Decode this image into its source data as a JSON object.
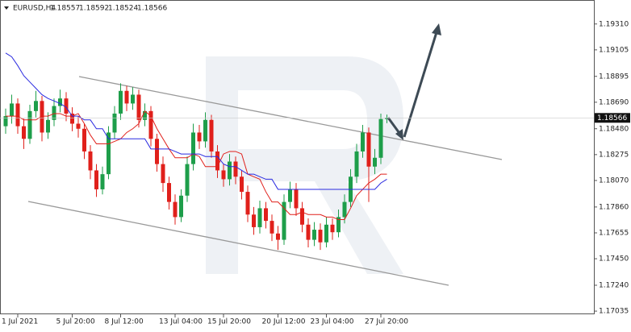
{
  "chart_data": {
    "type": "candlestick",
    "title": "EURUSD,H4",
    "categories": [
      null,
      null,
      "1 Jul 2021",
      null,
      null,
      null,
      null,
      null,
      null,
      null,
      null,
      "5 Jul 20:00",
      null,
      null,
      null,
      null,
      null,
      null,
      null,
      "8 Jul 12:00",
      null,
      null,
      null,
      null,
      null,
      null,
      null,
      null,
      "13 Jul 04:00",
      null,
      null,
      null,
      null,
      null,
      null,
      null,
      "15 Jul 20:00",
      null,
      null,
      null,
      null,
      null,
      null,
      null,
      null,
      "20 Jul 12:00",
      null,
      null,
      null,
      null,
      null,
      null,
      null,
      "23 Jul 04:00",
      null,
      null,
      null,
      null,
      null,
      null,
      null,
      null,
      "27 Jul 20:00",
      null
    ],
    "open": [
      1.185,
      1.1858,
      1.1868,
      1.185,
      1.184,
      1.1862,
      1.187,
      1.1845,
      1.1855,
      1.1866,
      1.1872,
      1.186,
      1.1852,
      1.1848,
      1.183,
      1.1815,
      1.18,
      1.1812,
      1.1845,
      1.186,
      1.1878,
      1.1868,
      1.1875,
      1.1855,
      1.1862,
      1.184,
      1.182,
      1.1805,
      1.179,
      1.1778,
      1.1795,
      1.182,
      1.1845,
      1.1838,
      1.1855,
      1.183,
      1.1815,
      1.1808,
      1.1822,
      1.181,
      1.1798,
      1.178,
      1.177,
      1.1785,
      1.1775,
      1.1765,
      1.176,
      1.179,
      1.18,
      1.1785,
      1.1772,
      1.176,
      1.1768,
      1.1758,
      1.1772,
      1.1766,
      1.1778,
      1.179,
      1.181,
      1.183,
      1.1845,
      1.1818,
      1.1825,
      1.18557
    ],
    "high": [
      1.1864,
      1.1875,
      1.1872,
      1.1856,
      1.1867,
      1.1878,
      1.1874,
      1.1861,
      1.1872,
      1.1879,
      1.1877,
      1.1865,
      1.1858,
      1.1852,
      1.1835,
      1.182,
      1.1818,
      1.185,
      1.1866,
      1.1884,
      1.1882,
      1.1881,
      1.1879,
      1.1868,
      1.1866,
      1.1844,
      1.1826,
      1.181,
      1.1796,
      1.18,
      1.1826,
      1.1852,
      1.1851,
      1.1861,
      1.1859,
      1.1835,
      1.182,
      1.1828,
      1.1826,
      1.1815,
      1.1803,
      1.1786,
      1.1791,
      1.179,
      1.178,
      1.1771,
      1.1796,
      1.1806,
      1.1805,
      1.179,
      1.1777,
      1.1774,
      1.1773,
      1.1778,
      1.1777,
      1.1784,
      1.1796,
      1.1816,
      1.1836,
      1.1851,
      1.1849,
      1.1832,
      1.186,
      1.18592
    ],
    "low": [
      1.1844,
      1.1852,
      1.1844,
      1.1832,
      1.1836,
      1.1857,
      1.1838,
      1.184,
      1.185,
      1.1861,
      1.1854,
      1.1846,
      1.1841,
      1.1824,
      1.1808,
      1.1794,
      1.1796,
      1.1808,
      1.184,
      1.1855,
      1.1862,
      1.1863,
      1.1849,
      1.185,
      1.1834,
      1.1814,
      1.1798,
      1.1784,
      1.1772,
      1.1774,
      1.179,
      1.1815,
      1.1832,
      1.1833,
      1.1825,
      1.1809,
      1.1802,
      1.1803,
      1.1804,
      1.1792,
      1.1774,
      1.1764,
      1.1765,
      1.1769,
      1.1759,
      1.1752,
      1.1756,
      1.1785,
      1.1779,
      1.1766,
      1.1754,
      1.1755,
      1.1752,
      1.1754,
      1.176,
      1.1762,
      1.1773,
      1.1786,
      1.1805,
      1.1825,
      1.179,
      1.1812,
      1.182,
      1.18524
    ],
    "close": [
      1.1858,
      1.1868,
      1.185,
      1.184,
      1.1862,
      1.187,
      1.1845,
      1.1855,
      1.1866,
      1.1872,
      1.186,
      1.1852,
      1.1848,
      1.183,
      1.1815,
      1.18,
      1.1812,
      1.1845,
      1.186,
      1.1878,
      1.1868,
      1.1875,
      1.1855,
      1.1862,
      1.184,
      1.182,
      1.1805,
      1.179,
      1.1778,
      1.1795,
      1.182,
      1.1845,
      1.1838,
      1.1855,
      1.183,
      1.1815,
      1.1808,
      1.1822,
      1.181,
      1.1798,
      1.178,
      1.177,
      1.1785,
      1.1775,
      1.1765,
      1.176,
      1.179,
      1.18,
      1.1785,
      1.1772,
      1.176,
      1.1768,
      1.1758,
      1.1772,
      1.1766,
      1.1778,
      1.179,
      1.181,
      1.183,
      1.1845,
      1.1818,
      1.1825,
      1.18557,
      1.18566
    ],
    "up_color": "#1e9e4a",
    "down_color": "#e0201b",
    "lines": [
      {
        "color": "#e0201b",
        "values": [
          1.1858,
          1.1858,
          1.1858,
          1.1855,
          1.1855,
          1.1855,
          1.1858,
          1.1858,
          1.186,
          1.186,
          1.1858,
          1.1858,
          1.186,
          1.1852,
          1.1843,
          1.1836,
          1.1836,
          1.1836,
          1.1838,
          1.184,
          1.1845,
          1.1848,
          1.1852,
          1.1862,
          1.1858,
          1.1848,
          1.184,
          1.1832,
          1.1825,
          1.1825,
          1.1825,
          1.1828,
          1.1826,
          1.1818,
          1.1818,
          1.1818,
          1.1828,
          1.183,
          1.183,
          1.1828,
          1.1812,
          1.181,
          1.1808,
          1.1798,
          1.179,
          1.179,
          1.1785,
          1.178,
          1.178,
          1.1782,
          1.178,
          1.178,
          1.178,
          1.1778,
          1.1778,
          1.1776,
          1.1776,
          1.1785,
          1.1795,
          1.18,
          1.1805,
          1.1808,
          1.1812,
          1.1812
        ]
      },
      {
        "color": "#2a2ae0",
        "values": [
          1.1908,
          1.1905,
          1.1898,
          1.189,
          1.1885,
          1.188,
          1.1875,
          1.1872,
          1.187,
          1.1868,
          1.1865,
          1.1858,
          1.1858,
          1.1855,
          1.1855,
          1.1848,
          1.1848,
          1.184,
          1.184,
          1.184,
          1.184,
          1.184,
          1.184,
          1.184,
          1.1832,
          1.1832,
          1.1832,
          1.1832,
          1.183,
          1.1828,
          1.1828,
          1.1828,
          1.1828,
          1.1826,
          1.1826,
          1.1826,
          1.182,
          1.1818,
          1.1818,
          1.1815,
          1.1812,
          1.1812,
          1.181,
          1.1808,
          1.1808,
          1.18,
          1.18,
          1.18,
          1.18,
          1.18,
          1.18,
          1.18,
          1.18,
          1.18,
          1.18,
          1.18,
          1.18,
          1.18,
          1.18,
          1.18,
          1.18,
          1.18,
          1.1805,
          1.1808
        ]
      }
    ],
    "ylim": [
      1.1701,
      1.195
    ],
    "yticks": [
      {
        "value": 1.1931,
        "label": "1.19310"
      },
      1.19105,
      {
        "value": 1.18895,
        "label": "1.18895"
      },
      {
        "value": 1.1869,
        "label": "1.18690"
      },
      {
        "value": 1.1848,
        "label": "1.18480"
      },
      1.18275,
      {
        "value": 1.1807,
        "label": "1.18070"
      },
      {
        "value": 1.1786,
        "label": "1.17860"
      },
      1.17655,
      {
        "value": 1.1745,
        "label": "1.17450"
      },
      {
        "value": 1.1724,
        "label": "1.17240"
      },
      1.17035
    ]
  }
}
